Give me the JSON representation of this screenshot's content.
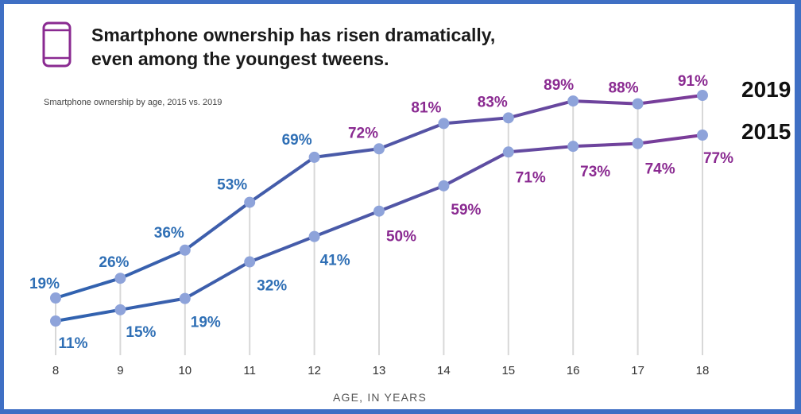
{
  "title_line1": "Smartphone ownership has risen dramatically,",
  "title_line2": "even among the youngest tweens.",
  "subtitle": "Smartphone ownership by age, 2015 vs. 2019",
  "phone_icon": "smartphone-icon",
  "colors": {
    "blue": "#2f6fb5",
    "purple": "#8a2a91",
    "line_2019": "#5a53a6",
    "line_2015": "#5a53a6",
    "marker": "#8ea3da",
    "frame": "#3f6fc4"
  },
  "chart_data": {
    "type": "line",
    "xlabel": "AGE, IN YEARS",
    "x": [
      8,
      9,
      10,
      11,
      12,
      13,
      14,
      15,
      16,
      17,
      18
    ],
    "ylim": [
      0,
      100
    ],
    "grid": "vertical",
    "legend": "right",
    "series": [
      {
        "name": "2019",
        "values": [
          19,
          26,
          36,
          53,
          69,
          72,
          81,
          83,
          89,
          88,
          91
        ],
        "labels": [
          "19%",
          "26%",
          "36%",
          "53%",
          "69%",
          "72%",
          "81%",
          "83%",
          "89%",
          "88%",
          "91%"
        ]
      },
      {
        "name": "2015",
        "values": [
          11,
          15,
          19,
          32,
          41,
          50,
          59,
          71,
          73,
          74,
          77
        ],
        "labels": [
          "11%",
          "15%",
          "19%",
          "32%",
          "41%",
          "50%",
          "59%",
          "71%",
          "73%",
          "74%",
          "77%"
        ]
      }
    ]
  }
}
